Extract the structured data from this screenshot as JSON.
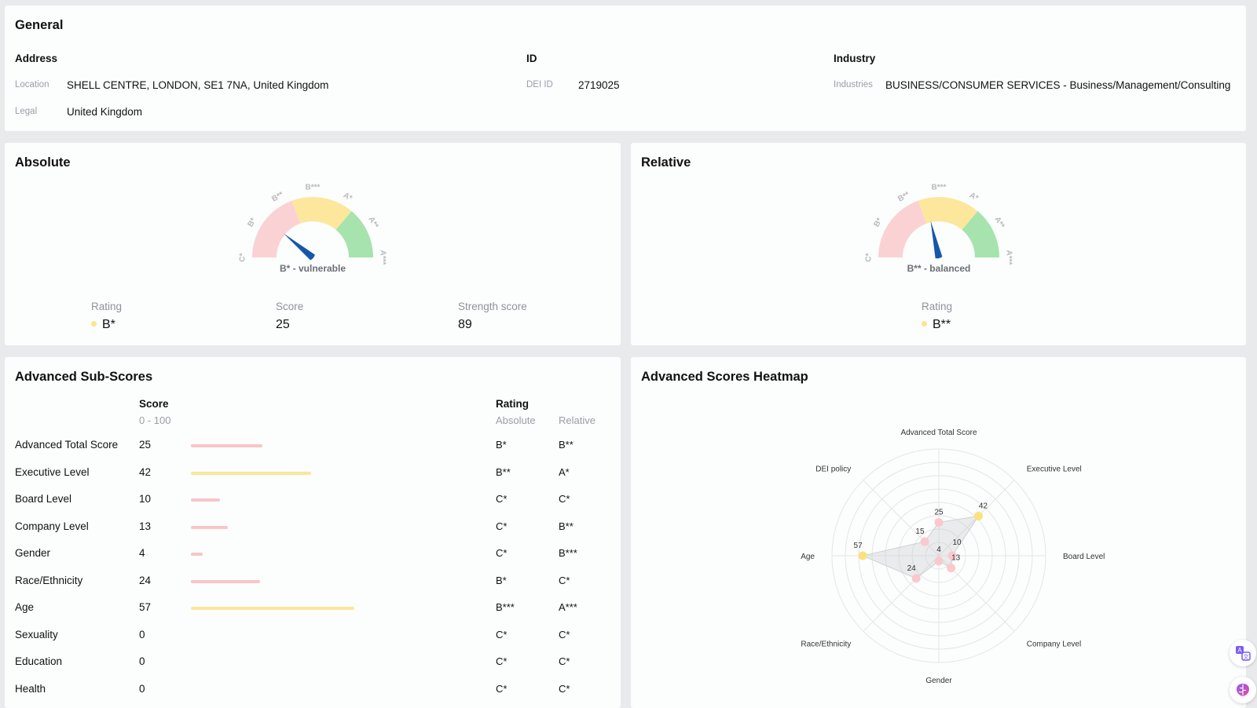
{
  "general": {
    "title": "General",
    "address": {
      "heading": "Address",
      "location_label": "Location",
      "location_value": "SHELL CENTRE, LONDON, SE1 7NA, United Kingdom",
      "legal_label": "Legal",
      "legal_value": "United Kingdom"
    },
    "id": {
      "heading": "ID",
      "dei_label": "DEI ID",
      "dei_value": "2719025"
    },
    "industry": {
      "heading": "Industry",
      "industries_label": "Industries",
      "industries_value": "BUSINESS/CONSUMER SERVICES - Business/Management/Consulting"
    }
  },
  "absolute": {
    "title": "Absolute",
    "gauge_labels": [
      "C*",
      "B*",
      "B**",
      "B***",
      "A*",
      "A**",
      "A***"
    ],
    "gauge_caption": "B* - vulnerable",
    "needle_fraction": 0.22,
    "rating_label": "Rating",
    "rating_value": "B*",
    "rating_color": "#fde58a",
    "score_label": "Score",
    "score_value": "25",
    "strength_label": "Strength score",
    "strength_value": "89"
  },
  "relative": {
    "title": "Relative",
    "gauge_labels": [
      "C*",
      "B*",
      "B**",
      "B***",
      "A*",
      "A**",
      "A***"
    ],
    "gauge_caption": "B** - balanced",
    "needle_fraction": 0.43,
    "rating_label": "Rating",
    "rating_value": "B**",
    "rating_color": "#fde58a"
  },
  "subscores": {
    "title": "Advanced Sub-Scores",
    "score_heading": "Score",
    "score_range": "0 - 100",
    "rating_heading": "Rating",
    "absolute_heading": "Absolute",
    "relative_heading": "Relative",
    "rows": [
      {
        "name": "Advanced Total Score",
        "score": "25",
        "abs": "B*",
        "rel": "B**",
        "color": "#f7c6c9"
      },
      {
        "name": "Executive Level",
        "score": "42",
        "abs": "B**",
        "rel": "A*",
        "color": "#fbe69a"
      },
      {
        "name": "Board Level",
        "score": "10",
        "abs": "C*",
        "rel": "C*",
        "color": "#f7c6c9"
      },
      {
        "name": "Company Level",
        "score": "13",
        "abs": "C*",
        "rel": "B**",
        "color": "#f7c6c9"
      },
      {
        "name": "Gender",
        "score": "4",
        "abs": "C*",
        "rel": "B***",
        "color": "#f7c6c9"
      },
      {
        "name": "Race/Ethnicity",
        "score": "24",
        "abs": "B*",
        "rel": "C*",
        "color": "#f7c6c9"
      },
      {
        "name": "Age",
        "score": "57",
        "abs": "B***",
        "rel": "A***",
        "color": "#fbe69a"
      },
      {
        "name": "Sexuality",
        "score": "0",
        "abs": "C*",
        "rel": "C*",
        "color": "#f7c6c9"
      },
      {
        "name": "Education",
        "score": "0",
        "abs": "C*",
        "rel": "C*",
        "color": "#f7c6c9"
      },
      {
        "name": "Health",
        "score": "0",
        "abs": "C*",
        "rel": "C*",
        "color": "#f7c6c9"
      }
    ]
  },
  "heatmap": {
    "title": "Advanced Scores Heatmap"
  },
  "chart_data": {
    "type": "radar",
    "categories": [
      "Advanced Total Score",
      "Executive Level",
      "Board Level",
      "Company Level",
      "Gender",
      "Race/Ethnicity",
      "Age",
      "DEI policy"
    ],
    "values": [
      25,
      42,
      10,
      13,
      4,
      24,
      57,
      15
    ],
    "range": [
      0,
      80
    ],
    "rings": 8,
    "point_colors": [
      "#f9c9cd",
      "#fbe27c",
      "#f9c9cd",
      "#f9c9cd",
      "#f9c9cd",
      "#f9c9cd",
      "#fbe27c",
      "#f9c9cd"
    ]
  },
  "colors": {
    "gauge_red": "#fbd2d4",
    "gauge_yellow": "#fde79d",
    "gauge_green": "#a6e3ad",
    "needle": "#1557a9"
  },
  "floating": {
    "translate_icon": "translate-icon",
    "brain_icon": "brain-icon"
  }
}
